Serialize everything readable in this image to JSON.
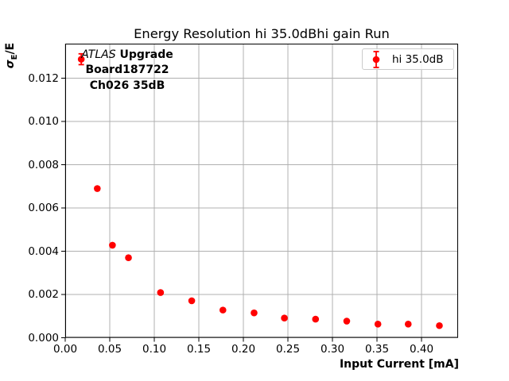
{
  "chart_data": {
    "type": "scatter",
    "title": "Energy Resolution hi 35.0dBhi gain Run",
    "xlabel": "Input Current [mA]",
    "ylabel": "σE/E",
    "ylabel_parts": {
      "sigma": "σ",
      "sub": "E",
      "rest": "/E"
    },
    "xlim": [
      0,
      0.441
    ],
    "ylim": [
      0,
      0.0136
    ],
    "grid": true,
    "grid_color": "#b0b0b0",
    "axis_color": "#000000",
    "xticks": {
      "values": [
        0,
        0.05,
        0.1,
        0.15,
        0.2,
        0.25,
        0.3,
        0.35,
        0.4
      ],
      "labels": [
        "0.00",
        "0.05",
        "0.10",
        "0.15",
        "0.20",
        "0.25",
        "0.30",
        "0.35",
        "0.40"
      ]
    },
    "yticks": {
      "values": [
        0,
        0.002,
        0.004,
        0.006,
        0.008,
        0.01,
        0.012
      ],
      "labels": [
        "0.000",
        "0.002",
        "0.004",
        "0.006",
        "0.008",
        "0.010",
        "0.012"
      ]
    },
    "legend": {
      "position": "upper right",
      "entries": [
        {
          "label": "hi 35.0dB",
          "color": "#ff0000",
          "marker": "errorbar-point"
        }
      ]
    },
    "series": [
      {
        "name": "hi 35.0dB",
        "color": "#ff0000",
        "marker": "circle",
        "points": [
          {
            "x": 0.018,
            "y": 0.01288,
            "yerr": 0.00025
          },
          {
            "x": 0.036,
            "y": 0.0069,
            "yerr": 7e-05
          },
          {
            "x": 0.053,
            "y": 0.00428,
            "yerr": 6e-05
          },
          {
            "x": 0.071,
            "y": 0.0037,
            "yerr": 6e-05
          },
          {
            "x": 0.107,
            "y": 0.00209,
            "yerr": 5e-05
          },
          {
            "x": 0.142,
            "y": 0.00171,
            "yerr": 5e-05
          },
          {
            "x": 0.177,
            "y": 0.00128,
            "yerr": 4e-05
          },
          {
            "x": 0.212,
            "y": 0.00115,
            "yerr": 4e-05
          },
          {
            "x": 0.246,
            "y": 0.00091,
            "yerr": 4e-05
          },
          {
            "x": 0.281,
            "y": 0.00086,
            "yerr": 4e-05
          },
          {
            "x": 0.316,
            "y": 0.00077,
            "yerr": 4e-05
          },
          {
            "x": 0.351,
            "y": 0.00063,
            "yerr": 3e-05
          },
          {
            "x": 0.385,
            "y": 0.00063,
            "yerr": 3e-05
          },
          {
            "x": 0.42,
            "y": 0.00056,
            "yerr": 3e-05
          }
        ]
      }
    ],
    "annotation": {
      "line1_italic": "ATLAS",
      "line1_bold": " Upgrade",
      "line2": "Board187722",
      "line3": "Ch026 35dB"
    }
  }
}
